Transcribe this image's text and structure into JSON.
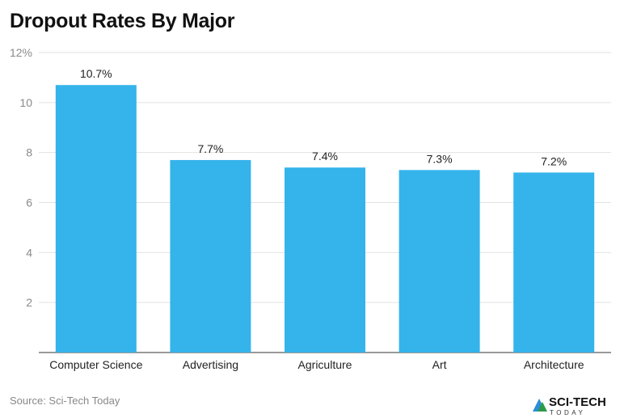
{
  "chart_data": {
    "type": "bar",
    "title": "Dropout Rates By Major",
    "categories": [
      "Computer Science",
      "Advertising",
      "Agriculture",
      "Art",
      "Architecture"
    ],
    "values": [
      10.7,
      7.7,
      7.4,
      7.3,
      7.2
    ],
    "data_labels": [
      "10.7%",
      "7.7%",
      "7.4%",
      "7.3%",
      "7.2%"
    ],
    "xlabel": "",
    "ylabel": "",
    "ylim": [
      0,
      12
    ],
    "yticks": [
      2,
      4,
      6,
      8,
      10,
      12
    ],
    "ytick_labels": [
      "2",
      "4",
      "6",
      "8",
      "10",
      "12%"
    ],
    "grid": true,
    "bar_color": "#35b3eb"
  },
  "source": "Source: Sci-Tech Today",
  "logo": {
    "text": "SCI-TECH",
    "subtext": "TODAY"
  }
}
